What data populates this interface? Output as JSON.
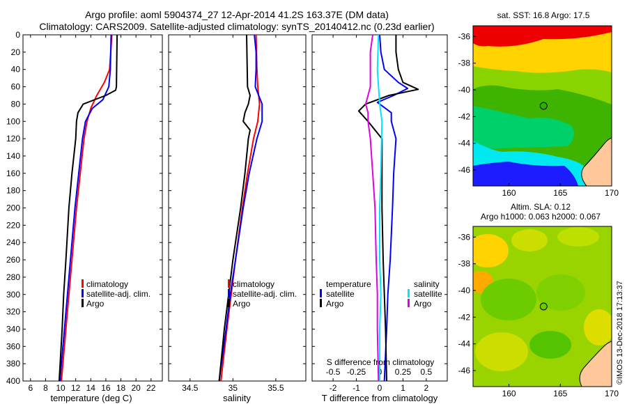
{
  "header": {
    "line1": "Argo profile: aoml 5904374_27 12-Apr-2014 41.2S 163.37E (DM data)",
    "line2": "Climatology: CARS2009. Satellite-adjusted climatology: synTS_20140412.nc (0.23d earlier)"
  },
  "footer": {
    "credit": "©IMOS 13-Dec-2018 17:13:37"
  },
  "colors": {
    "climatology": "#ff0000",
    "satellite": "#0000ff",
    "argo": "#000000",
    "sat_salinity": "#00e5ff",
    "argo_salinity": "#e000e0"
  },
  "chart_data": [
    {
      "type": "line",
      "id": "temperature",
      "xlabel": "temperature (deg C)",
      "ylabel": "",
      "xlim": [
        5,
        23.5
      ],
      "ylim": [
        400,
        0
      ],
      "x_ticks": [
        "6",
        "8",
        "10",
        "12",
        "14",
        "16",
        "18",
        "20",
        "22"
      ],
      "x_tick_values": [
        6,
        8,
        10,
        12,
        14,
        16,
        18,
        20,
        22
      ],
      "y_ticks": [
        "0",
        "20",
        "40",
        "60",
        "80",
        "100",
        "120",
        "140",
        "160",
        "180",
        "200",
        "220",
        "240",
        "260",
        "280",
        "300",
        "320",
        "340",
        "360",
        "380",
        "400"
      ],
      "y_tick_values": [
        0,
        20,
        40,
        60,
        80,
        100,
        120,
        140,
        160,
        180,
        200,
        220,
        240,
        260,
        280,
        300,
        320,
        340,
        360,
        380,
        400
      ],
      "legend": [
        "climatology",
        "satellite-adj. clim.",
        "Argo"
      ],
      "series": [
        {
          "name": "climatology",
          "color": "#ff0000",
          "depth": [
            0,
            40,
            55,
            70,
            85,
            100,
            120,
            160,
            200,
            260,
            300,
            340,
            400
          ],
          "values": [
            16.8,
            16.5,
            15.8,
            14.8,
            14.0,
            13.5,
            13.1,
            12.6,
            12.1,
            11.5,
            11.1,
            10.7,
            10.1
          ]
        },
        {
          "name": "satellite-adj. clim.",
          "color": "#0000ff",
          "depth": [
            0,
            40,
            60,
            75,
            85,
            100,
            120,
            160,
            200,
            260,
            300,
            340,
            400
          ],
          "values": [
            16.7,
            16.6,
            16.4,
            15.6,
            14.2,
            13.3,
            12.9,
            12.4,
            11.9,
            11.3,
            10.9,
            10.5,
            9.9
          ]
        },
        {
          "name": "Argo",
          "color": "#000000",
          "depth": [
            0,
            60,
            64,
            70,
            80,
            90,
            100,
            120,
            160,
            200,
            260,
            300,
            340,
            400
          ],
          "values": [
            17.5,
            17.4,
            17.3,
            16.0,
            13.0,
            12.3,
            12.1,
            12.0,
            11.5,
            11.1,
            10.7,
            10.4,
            10.2,
            9.8
          ]
        }
      ]
    },
    {
      "type": "line",
      "id": "salinity",
      "xlabel": "salinity",
      "ylabel": "",
      "xlim": [
        34.25,
        35.85
      ],
      "ylim": [
        400,
        0
      ],
      "x_ticks": [
        "34.5",
        "35",
        "35.5"
      ],
      "x_tick_values": [
        34.5,
        35,
        35.5
      ],
      "legend": [
        "climatology",
        "satellite-adj. clim.",
        "Argo"
      ],
      "series": [
        {
          "name": "climatology",
          "color": "#ff0000",
          "depth": [
            0,
            40,
            60,
            80,
            100,
            120,
            160,
            200,
            260,
            300,
            340,
            400
          ],
          "values": [
            35.27,
            35.28,
            35.29,
            35.31,
            35.29,
            35.24,
            35.17,
            35.11,
            35.03,
            34.98,
            34.93,
            34.86
          ]
        },
        {
          "name": "satellite-adj. clim.",
          "color": "#0000ff",
          "depth": [
            0,
            20,
            40,
            60,
            70,
            80,
            100,
            120,
            160,
            200,
            260,
            300,
            340,
            400
          ],
          "values": [
            35.25,
            35.27,
            35.27,
            35.26,
            35.3,
            35.34,
            35.34,
            35.28,
            35.19,
            35.12,
            35.03,
            34.97,
            34.92,
            34.84
          ]
        },
        {
          "name": "Argo",
          "color": "#000000",
          "depth": [
            0,
            60,
            70,
            80,
            90,
            100,
            110,
            120,
            160,
            200,
            260,
            300,
            340,
            400
          ],
          "values": [
            35.16,
            35.17,
            35.2,
            35.18,
            35.14,
            35.12,
            35.2,
            35.18,
            35.14,
            35.09,
            35.0,
            34.95,
            34.9,
            34.84
          ]
        }
      ]
    },
    {
      "type": "line",
      "id": "difference",
      "xlabel": "T difference from climatology",
      "xlabel_top": "S difference from climatology",
      "xlim": [
        -2.9,
        2.9
      ],
      "ylim": [
        400,
        0
      ],
      "x_ticks": [
        "-2",
        "-1",
        "0",
        "1",
        "2"
      ],
      "x_tick_values": [
        -2,
        -1,
        0,
        1,
        2
      ],
      "x_ticks_top": [
        "-0.5",
        "-0.25",
        "0",
        "0.25",
        "0.5"
      ],
      "x_tick_top_values": [
        -2,
        -1,
        0,
        1,
        2
      ],
      "legend_temperature_title": "temperature",
      "legend_salinity_title": "salinity",
      "legend_temperature": [
        "satellite",
        "Argo"
      ],
      "legend_salinity": [
        "satellite",
        "Argo"
      ],
      "series": [
        {
          "name": "T satellite",
          "color": "#0000ff",
          "depth": [
            0,
            20,
            40,
            55,
            62,
            70,
            78,
            90,
            100,
            120,
            160,
            200,
            260,
            300,
            340,
            400
          ],
          "values": [
            0.0,
            0.05,
            0.2,
            0.8,
            1.2,
            0.6,
            -0.1,
            0.5,
            0.5,
            0.7,
            0.6,
            0.55,
            0.45,
            0.35,
            0.3,
            0.2
          ]
        },
        {
          "name": "T Argo",
          "color": "#000000",
          "depth": [
            0,
            20,
            40,
            55,
            63,
            70,
            80,
            88,
            100,
            120,
            160,
            200,
            260,
            300,
            340,
            400
          ],
          "values": [
            0.7,
            0.7,
            0.8,
            1.0,
            1.65,
            0.4,
            -0.6,
            -0.9,
            -0.5,
            0.1,
            0.1,
            0.1,
            0.15,
            0.2,
            0.25,
            0.3
          ]
        },
        {
          "name": "S satellite",
          "color": "#00e5ff",
          "depth": [
            0,
            40,
            80,
            100,
            160,
            200,
            260,
            300,
            340,
            400
          ],
          "values": [
            -0.05,
            -0.1,
            0.0,
            0.1,
            0.05,
            0.0,
            0.0,
            0.05,
            0.0,
            0.0
          ]
        },
        {
          "name": "S Argo",
          "color": "#e000e0",
          "depth": [
            0,
            20,
            40,
            60,
            70,
            80,
            90,
            100,
            120,
            160,
            200,
            260,
            300,
            340,
            400
          ],
          "values": [
            -0.3,
            -0.4,
            -0.4,
            -0.4,
            -0.5,
            -0.6,
            -0.5,
            -0.5,
            -0.4,
            -0.3,
            -0.2,
            -0.15,
            -0.1,
            -0.1,
            -0.05
          ]
        }
      ]
    },
    {
      "type": "heatmap",
      "id": "sst-map",
      "title": "sat. SST: 16.8 Argo: 17.5",
      "xlim": [
        156.5,
        170
      ],
      "ylim": [
        -47.2,
        -35.2
      ],
      "x_ticks": [
        "160",
        "165",
        "170"
      ],
      "x_tick_values": [
        160,
        165,
        170
      ],
      "y_ticks": [
        "-36",
        "-38",
        "-40",
        "-42",
        "-44",
        "-46"
      ],
      "y_tick_values": [
        -36,
        -38,
        -40,
        -42,
        -44,
        -46
      ],
      "argo_position": {
        "lon": 163.37,
        "lat": -41.2
      }
    },
    {
      "type": "heatmap",
      "id": "sla-map",
      "title": "Altim. SLA: 0.12",
      "subtitle": "Argo h1000: 0.063 h2000: 0.067",
      "xlim": [
        156.5,
        170
      ],
      "ylim": [
        -47.2,
        -35.2
      ],
      "x_ticks": [
        "160",
        "165",
        "170"
      ],
      "x_tick_values": [
        160,
        165,
        170
      ],
      "y_ticks": [
        "-36",
        "-38",
        "-40",
        "-42",
        "-44",
        "-46"
      ],
      "y_tick_values": [
        -36,
        -38,
        -40,
        -42,
        -44,
        -46
      ],
      "argo_position": {
        "lon": 163.37,
        "lat": -41.2
      }
    }
  ]
}
